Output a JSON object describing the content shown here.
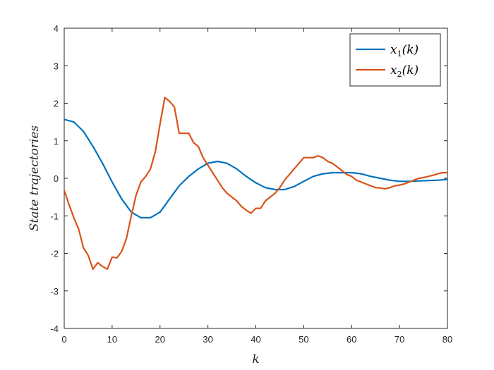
{
  "chart_data": {
    "type": "line",
    "xlabel": "k",
    "ylabel": "State trajectories",
    "xlim": [
      0,
      80
    ],
    "ylim": [
      -4,
      4
    ],
    "xticks": [
      "0",
      "10",
      "20",
      "30",
      "40",
      "50",
      "60",
      "70",
      "80"
    ],
    "yticks": [
      "4",
      "3",
      "2",
      "1",
      "0",
      "-1",
      "-2",
      "-3",
      "-4"
    ],
    "grid": false,
    "legend_position": "top-right",
    "series": [
      {
        "name": "x_1(k)",
        "label_main": "x",
        "label_sub": "1",
        "label_tail": "(k)",
        "color": "#0072BD",
        "x": [
          0,
          2,
          4,
          6,
          8,
          10,
          12,
          14,
          16,
          18,
          20,
          22,
          24,
          26,
          28,
          30,
          32,
          34,
          36,
          38,
          40,
          42,
          44,
          46,
          48,
          50,
          52,
          54,
          56,
          58,
          60,
          62,
          64,
          66,
          68,
          70,
          72,
          74,
          76,
          78,
          80
        ],
        "y": [
          1.57,
          1.5,
          1.25,
          0.85,
          0.4,
          -0.1,
          -0.55,
          -0.9,
          -1.05,
          -1.05,
          -0.9,
          -0.55,
          -0.2,
          0.05,
          0.25,
          0.4,
          0.45,
          0.4,
          0.25,
          0.05,
          -0.12,
          -0.25,
          -0.3,
          -0.3,
          -0.22,
          -0.08,
          0.05,
          0.12,
          0.15,
          0.15,
          0.15,
          0.12,
          0.05,
          0.0,
          -0.05,
          -0.08,
          -0.08,
          -0.07,
          -0.06,
          -0.05,
          -0.03
        ]
      },
      {
        "name": "x_2(k)",
        "label_main": "x",
        "label_sub": "2",
        "label_tail": "(k)",
        "color": "#D95319",
        "x": [
          0,
          1,
          2,
          3,
          4,
          5,
          6,
          7,
          8,
          9,
          10,
          11,
          12,
          13,
          14,
          15,
          16,
          17,
          18,
          19,
          20,
          21,
          22,
          23,
          24,
          25,
          26,
          27,
          28,
          29,
          30,
          31,
          32,
          33,
          34,
          35,
          36,
          37,
          38,
          39,
          40,
          41,
          42,
          43,
          44,
          45,
          46,
          47,
          48,
          49,
          50,
          51,
          52,
          53,
          54,
          55,
          56,
          57,
          58,
          59,
          60,
          61,
          62,
          63,
          64,
          65,
          66,
          67,
          68,
          69,
          70,
          71,
          72,
          73,
          74,
          75,
          76,
          77,
          78,
          79,
          80
        ],
        "y": [
          -0.32,
          -0.7,
          -1.05,
          -1.35,
          -1.85,
          -2.05,
          -2.42,
          -2.25,
          -2.35,
          -2.42,
          -2.1,
          -2.12,
          -1.95,
          -1.6,
          -1.0,
          -0.45,
          -0.1,
          0.05,
          0.25,
          0.7,
          1.45,
          2.15,
          2.05,
          1.9,
          1.2,
          1.2,
          1.2,
          0.95,
          0.85,
          0.55,
          0.35,
          0.15,
          -0.05,
          -0.25,
          -0.4,
          -0.5,
          -0.6,
          -0.75,
          -0.85,
          -0.93,
          -0.8,
          -0.8,
          -0.6,
          -0.5,
          -0.4,
          -0.25,
          -0.05,
          0.1,
          0.25,
          0.4,
          0.55,
          0.55,
          0.55,
          0.6,
          0.55,
          0.45,
          0.4,
          0.3,
          0.2,
          0.1,
          0.05,
          -0.05,
          -0.1,
          -0.15,
          -0.2,
          -0.25,
          -0.26,
          -0.28,
          -0.25,
          -0.2,
          -0.18,
          -0.15,
          -0.1,
          -0.05,
          0.0,
          0.02,
          0.05,
          0.08,
          0.12,
          0.15,
          0.15
        ]
      }
    ]
  }
}
